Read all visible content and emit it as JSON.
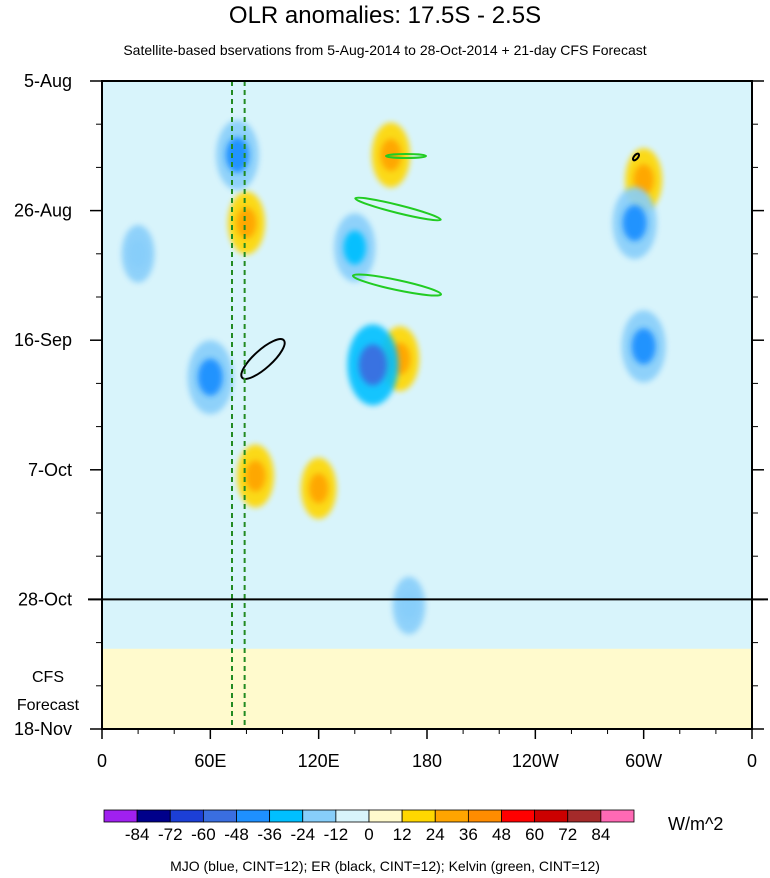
{
  "chart_data": {
    "type": "heatmap",
    "title": "OLR anomalies: 17.5S - 2.5S",
    "subtitle": "Satellite-based bservations from 5-Aug-2014 to 28-Oct-2014 + 21-day CFS Forecast",
    "x_axis": {
      "ticks": [
        "0",
        "60E",
        "120E",
        "180",
        "120W",
        "60W",
        "0"
      ],
      "tick_lon": [
        0,
        60,
        120,
        180,
        240,
        300,
        360
      ],
      "range": [
        0,
        360
      ]
    },
    "y_axis": {
      "ticks": [
        "5-Aug",
        "26-Aug",
        "16-Sep",
        "7-Oct",
        "28-Oct",
        "18-Nov"
      ],
      "tick_day": [
        0,
        21,
        42,
        63,
        84,
        105
      ],
      "range_days": [
        0,
        105
      ],
      "reversed": true
    },
    "forecast_label": [
      "CFS",
      "Forecast"
    ],
    "forecast_start_day": 84,
    "colorbar": {
      "labels": [
        "-84",
        "-72",
        "-60",
        "-48",
        "-36",
        "-24",
        "-12",
        "0",
        "12",
        "24",
        "36",
        "48",
        "60",
        "72",
        "84"
      ],
      "colors": [
        "#a020f0",
        "#00008b",
        "#1c3fd6",
        "#3a6ee0",
        "#1e90ff",
        "#00bfff",
        "#87cefa",
        "#d8f4fb",
        "#fffacd",
        "#ffd700",
        "#ffa500",
        "#ff8c00",
        "#ff0000",
        "#cc0000",
        "#a52a2a",
        "#ff69b4"
      ],
      "units": "W/m^2"
    },
    "mjo_phase_lines_lon": [
      72,
      79
    ],
    "contours_note": "MJO (blue, CINT=12); ER (black, CINT=12); Kelvin (green, CINT=12)",
    "features": [
      {
        "name": "positive",
        "lon": 80,
        "day": 23,
        "value": 30
      },
      {
        "name": "positive",
        "lon": 85,
        "day": 64,
        "value": 30
      },
      {
        "name": "positive",
        "lon": 120,
        "day": 66,
        "value": 28
      },
      {
        "name": "positive",
        "lon": 160,
        "day": 12,
        "value": 32
      },
      {
        "name": "positive",
        "lon": 165,
        "day": 45,
        "value": 32
      },
      {
        "name": "positive",
        "lon": 300,
        "day": 16,
        "value": 30
      },
      {
        "name": "negative",
        "lon": 75,
        "day": 12,
        "value": -38
      },
      {
        "name": "negative",
        "lon": 60,
        "day": 48,
        "value": -42
      },
      {
        "name": "negative",
        "lon": 150,
        "day": 46,
        "value": -50
      },
      {
        "name": "negative",
        "lon": 140,
        "day": 27,
        "value": -36
      },
      {
        "name": "negative",
        "lon": 295,
        "day": 23,
        "value": -40
      },
      {
        "name": "negative",
        "lon": 300,
        "day": 43,
        "value": -40
      },
      {
        "name": "negative",
        "lon": 20,
        "day": 28,
        "value": -24
      },
      {
        "name": "negative",
        "lon": 170,
        "day": 85,
        "value": -24
      }
    ]
  },
  "footer": "MJO (blue, CINT=12); ER (black, CINT=12); Kelvin (green, CINT=12)"
}
